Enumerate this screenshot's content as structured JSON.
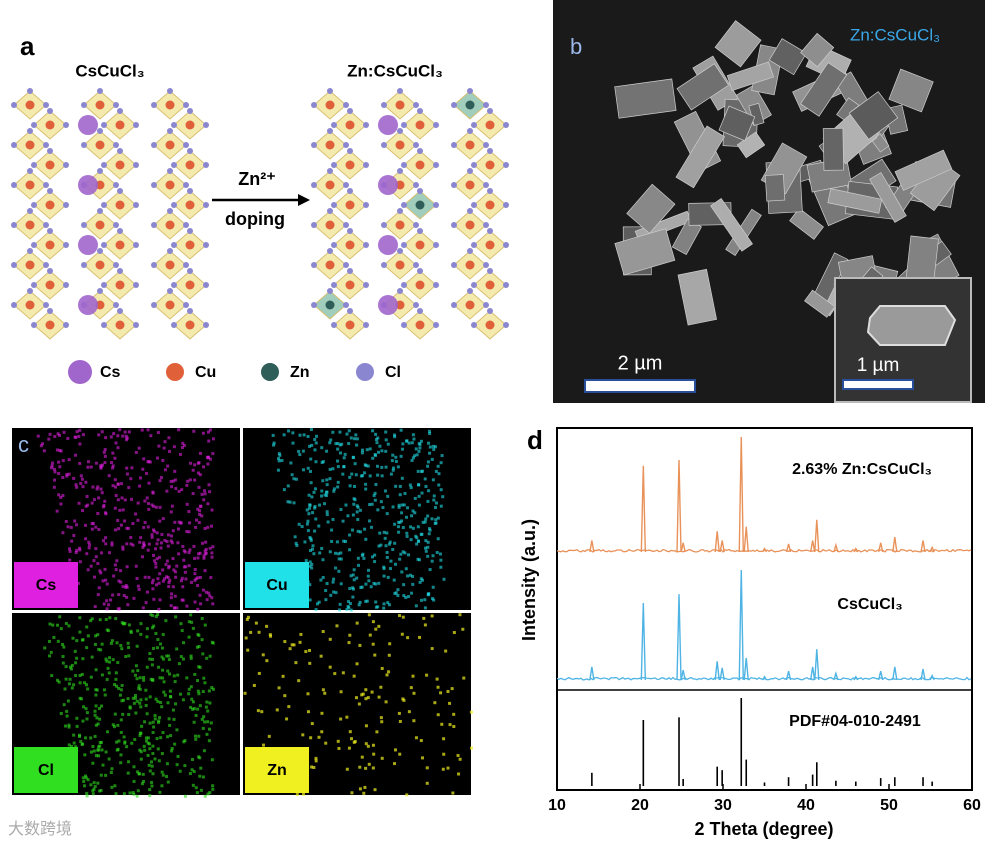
{
  "panel_a": {
    "label": "a",
    "left_title": "CsCuCl₃",
    "right_title": "Zn:CsCuCl₃",
    "arrow_top": "Zn²⁺",
    "arrow_bottom": "doping",
    "legend": [
      {
        "name": "Cs",
        "color": "#a066cc"
      },
      {
        "name": "Cu",
        "color": "#e0603a"
      },
      {
        "name": "Zn",
        "color": "#2f5d58"
      },
      {
        "name": "Cl",
        "color": "#8a86d0"
      }
    ]
  },
  "panel_b": {
    "label": "b",
    "sample": "Zn:CsCuCl₃",
    "scale_main": "2 µm",
    "scale_inset": "1 µm"
  },
  "panel_c": {
    "label": "c",
    "tiles": [
      {
        "name": "Cs",
        "color": "#e020e0"
      },
      {
        "name": "Cu",
        "color": "#20e0e8"
      },
      {
        "name": "Cl",
        "color": "#30e020"
      },
      {
        "name": "Zn",
        "color": "#f0f020"
      }
    ]
  },
  "watermark": "大数跨境",
  "chart_data": {
    "type": "xrd",
    "label": "d",
    "xlabel": "2 Theta (degree)",
    "ylabel": "Intensity (a.u.)",
    "xlim": [
      10,
      60
    ],
    "xticks": [
      10,
      20,
      30,
      40,
      50,
      60
    ],
    "x": [
      14.2,
      20.4,
      24.7,
      25.2,
      29.3,
      29.9,
      32.2,
      32.8,
      35,
      37.9,
      40.8,
      41.3,
      43.6,
      46,
      49,
      50.7,
      54.1,
      55.2
    ],
    "series": [
      {
        "name": "2.63% Zn:CsCuCl₃",
        "color": "#e8925a",
        "values": [
          0.1,
          0.75,
          0.8,
          0.08,
          0.18,
          0.1,
          1.0,
          0.22,
          0.03,
          0.07,
          0.1,
          0.28,
          0.06,
          0.03,
          0.08,
          0.13,
          0.1,
          0.04
        ]
      },
      {
        "name": "CsCuCl₃",
        "color": "#4fb4e4",
        "values": [
          0.12,
          0.7,
          0.78,
          0.09,
          0.17,
          0.11,
          1.0,
          0.2,
          0.03,
          0.08,
          0.12,
          0.28,
          0.06,
          0.03,
          0.08,
          0.12,
          0.1,
          0.04
        ]
      },
      {
        "name": "PDF#04-010-2491",
        "color": "#000000",
        "values": [
          0.15,
          0.75,
          0.78,
          0.08,
          0.22,
          0.18,
          1.0,
          0.3,
          0.04,
          0.1,
          0.13,
          0.27,
          0.06,
          0.05,
          0.09,
          0.1,
          0.1,
          0.05
        ]
      }
    ]
  }
}
